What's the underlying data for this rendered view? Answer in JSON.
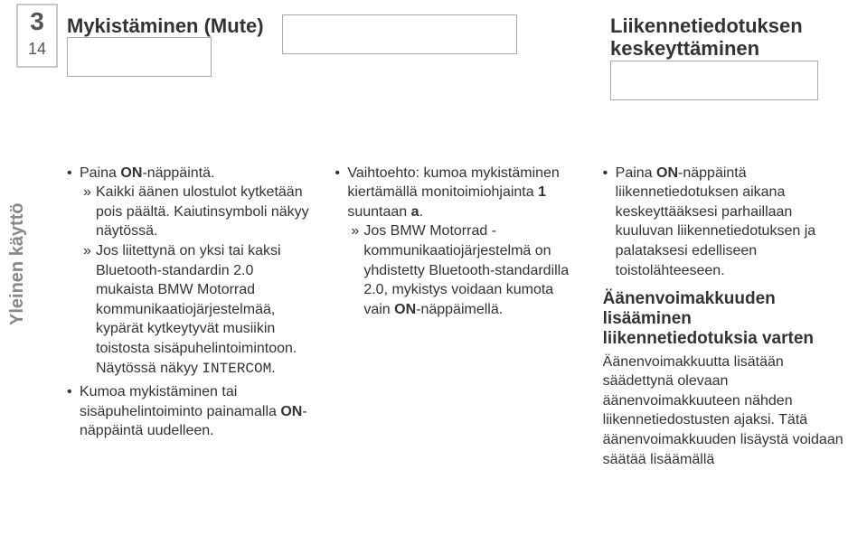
{
  "page_number": {
    "chapter": "3",
    "page": "14"
  },
  "side_label": "Yleinen käyttö",
  "headings": {
    "left": "Mykistäminen (Mute)",
    "right": "Liikennetiedotuksen keskeyttäminen"
  },
  "col1": {
    "b1": "Paina ",
    "b1_bold": "ON",
    "b1_tail": "-näppäintä.",
    "s1": "Kaikki äänen ulostulot kytketään pois päältä. Kaiutinsymboli näkyy näytössä.",
    "s2a": "Jos liitettynä on yksi tai kaksi Bluetooth-standardin 2.0 mukaista BMW Motorrad kommunikaatiojärjestelmää, kypärät kytkeytyvät musiikin toistosta sisäpuhelintoimintoon. Näytössä näkyy ",
    "s2_code": "INTERCOM",
    "s2b": ".",
    "b2a": "Kumoa mykistäminen tai sisäpuhelintoiminto painamalla ",
    "b2_bold": "ON",
    "b2b": "-näppäintä uudelleen."
  },
  "col2": {
    "b1a": "Vaihtoehto: kumoa mykistäminen kiertämällä monitoimiohjainta ",
    "b1_bold1": "1",
    "b1b": " suuntaan ",
    "b1_bold2": "a",
    "b1c": ".",
    "s1a": "Jos BMW Motorrad -kommunikaatiojärjestelmä on yhdistetty Bluetooth-standardilla 2.0, mykistys voidaan kumota vain ",
    "s1_bold": "ON",
    "s1b": "-näppäimellä."
  },
  "col3": {
    "b1a": "Paina ",
    "b1_bold": "ON",
    "b1b": "-näppäintä liikennetiedotuksen aikana keskeyttääksesi parhaillaan kuuluvan liikennetiedotuksen ja palataksesi edelliseen toistolähteeseen.",
    "h1": "Äänenvoimakkuuden lisääminen liikennetiedotuksia varten",
    "p1": "Äänenvoimakkuutta lisätään säädettynä olevaan äänenvoimakkuuteen nähden liikennetiedostusten ajaksi. Tätä äänenvoimakkuuden lisäystä voidaan säätää lisäämällä"
  }
}
